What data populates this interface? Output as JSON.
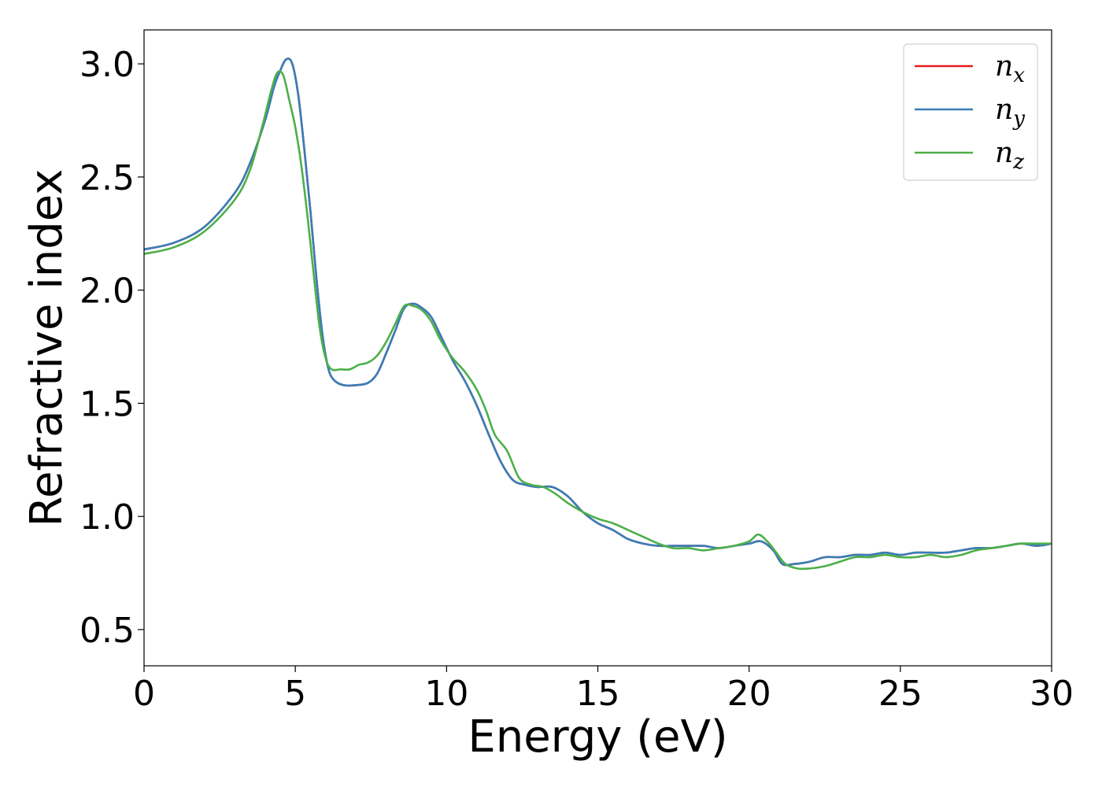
{
  "chart_data": {
    "type": "line",
    "xlabel": "Energy (eV)",
    "ylabel": "Refractive index",
    "xlim": [
      0,
      30
    ],
    "ylim": [
      0.34,
      3.15
    ],
    "xticks": [
      0,
      5,
      10,
      15,
      20,
      25,
      30
    ],
    "yticks": [
      0.5,
      1.0,
      1.5,
      2.0,
      2.5,
      3.0
    ],
    "xtick_labels": [
      "0",
      "5",
      "10",
      "15",
      "20",
      "25",
      "30"
    ],
    "ytick_labels": [
      "0.5",
      "1.0",
      "1.5",
      "2.0",
      "2.5",
      "3.0"
    ],
    "grid": false,
    "legend_position": "top-right",
    "series": [
      {
        "name": "n_x",
        "label_base": "n",
        "label_sub": "x",
        "color": "#e41a1c",
        "x": [
          0,
          1,
          2,
          3,
          3.5,
          4,
          4.3,
          4.5,
          4.7,
          4.9,
          5.1,
          5.3,
          5.5,
          5.7,
          5.9,
          6.1,
          6.3,
          6.6,
          7,
          7.4,
          7.7,
          8,
          8.3,
          8.6,
          8.9,
          9.2,
          9.5,
          9.8,
          10.2,
          10.6,
          11,
          11.4,
          11.8,
          12.2,
          12.6,
          13,
          13.5,
          14,
          14.5,
          15,
          15.5,
          16,
          16.5,
          17,
          17.5,
          18,
          18.5,
          19,
          19.5,
          20,
          20.4,
          20.8,
          21.1,
          21.5,
          22,
          22.5,
          23,
          23.5,
          24,
          24.5,
          25,
          25.5,
          26,
          26.5,
          27,
          27.5,
          28,
          28.5,
          29,
          29.5,
          30
        ],
        "y": [
          2.18,
          2.21,
          2.28,
          2.43,
          2.56,
          2.75,
          2.9,
          2.97,
          3.02,
          3.0,
          2.86,
          2.62,
          2.35,
          2.05,
          1.8,
          1.65,
          1.6,
          1.58,
          1.58,
          1.59,
          1.63,
          1.72,
          1.82,
          1.92,
          1.94,
          1.92,
          1.88,
          1.8,
          1.69,
          1.6,
          1.49,
          1.36,
          1.24,
          1.16,
          1.14,
          1.13,
          1.13,
          1.09,
          1.02,
          0.97,
          0.94,
          0.9,
          0.88,
          0.87,
          0.87,
          0.87,
          0.87,
          0.86,
          0.87,
          0.88,
          0.89,
          0.85,
          0.79,
          0.79,
          0.8,
          0.82,
          0.82,
          0.83,
          0.83,
          0.84,
          0.83,
          0.84,
          0.84,
          0.84,
          0.85,
          0.86,
          0.86,
          0.87,
          0.88,
          0.87,
          0.88
        ]
      },
      {
        "name": "n_y",
        "label_base": "n",
        "label_sub": "y",
        "color": "#377eb8",
        "x": [
          0,
          1,
          2,
          3,
          3.5,
          4,
          4.3,
          4.5,
          4.7,
          4.9,
          5.1,
          5.3,
          5.5,
          5.7,
          5.9,
          6.1,
          6.3,
          6.6,
          7,
          7.4,
          7.7,
          8,
          8.3,
          8.6,
          8.9,
          9.2,
          9.5,
          9.8,
          10.2,
          10.6,
          11,
          11.4,
          11.8,
          12.2,
          12.6,
          13,
          13.5,
          14,
          14.5,
          15,
          15.5,
          16,
          16.5,
          17,
          17.5,
          18,
          18.5,
          19,
          19.5,
          20,
          20.4,
          20.8,
          21.1,
          21.5,
          22,
          22.5,
          23,
          23.5,
          24,
          24.5,
          25,
          25.5,
          26,
          26.5,
          27,
          27.5,
          28,
          28.5,
          29,
          29.5,
          30
        ],
        "y": [
          2.18,
          2.21,
          2.28,
          2.43,
          2.56,
          2.75,
          2.9,
          2.97,
          3.02,
          3.0,
          2.86,
          2.62,
          2.35,
          2.05,
          1.8,
          1.65,
          1.6,
          1.58,
          1.58,
          1.59,
          1.63,
          1.72,
          1.82,
          1.92,
          1.94,
          1.92,
          1.88,
          1.8,
          1.69,
          1.6,
          1.49,
          1.36,
          1.24,
          1.16,
          1.14,
          1.13,
          1.13,
          1.09,
          1.02,
          0.97,
          0.94,
          0.9,
          0.88,
          0.87,
          0.87,
          0.87,
          0.87,
          0.86,
          0.87,
          0.88,
          0.89,
          0.85,
          0.79,
          0.79,
          0.8,
          0.82,
          0.82,
          0.83,
          0.83,
          0.84,
          0.83,
          0.84,
          0.84,
          0.84,
          0.85,
          0.86,
          0.86,
          0.87,
          0.88,
          0.87,
          0.88
        ]
      },
      {
        "name": "n_z",
        "label_base": "n",
        "label_sub": "z",
        "color": "#4daf4a",
        "x": [
          0,
          1,
          2,
          3,
          3.5,
          3.9,
          4.2,
          4.4,
          4.6,
          4.8,
          5.0,
          5.2,
          5.4,
          5.6,
          5.8,
          6.0,
          6.2,
          6.5,
          6.8,
          7.1,
          7.4,
          7.7,
          8.0,
          8.3,
          8.6,
          8.9,
          9.2,
          9.5,
          9.8,
          10.2,
          10.6,
          11.0,
          11.3,
          11.6,
          12.0,
          12.4,
          12.8,
          13.2,
          13.6,
          14.0,
          14.5,
          15.0,
          15.5,
          16.0,
          16.5,
          17.0,
          17.5,
          18.0,
          18.5,
          19.0,
          19.5,
          20.0,
          20.3,
          20.6,
          20.9,
          21.2,
          21.6,
          22.0,
          22.5,
          23.0,
          23.5,
          24.0,
          24.5,
          25.0,
          25.5,
          26.0,
          26.5,
          27.0,
          27.5,
          28.0,
          28.5,
          29.0,
          29.5,
          30.0
        ],
        "y": [
          2.16,
          2.19,
          2.26,
          2.4,
          2.53,
          2.72,
          2.88,
          2.96,
          2.95,
          2.84,
          2.72,
          2.55,
          2.33,
          2.08,
          1.84,
          1.7,
          1.65,
          1.65,
          1.65,
          1.67,
          1.68,
          1.71,
          1.77,
          1.85,
          1.93,
          1.93,
          1.91,
          1.86,
          1.78,
          1.7,
          1.64,
          1.56,
          1.47,
          1.36,
          1.29,
          1.17,
          1.14,
          1.13,
          1.1,
          1.06,
          1.02,
          0.99,
          0.97,
          0.94,
          0.91,
          0.88,
          0.86,
          0.86,
          0.85,
          0.86,
          0.87,
          0.89,
          0.92,
          0.89,
          0.84,
          0.79,
          0.77,
          0.77,
          0.78,
          0.8,
          0.82,
          0.82,
          0.83,
          0.82,
          0.82,
          0.83,
          0.82,
          0.83,
          0.85,
          0.86,
          0.87,
          0.88,
          0.88,
          0.88
        ]
      }
    ]
  }
}
